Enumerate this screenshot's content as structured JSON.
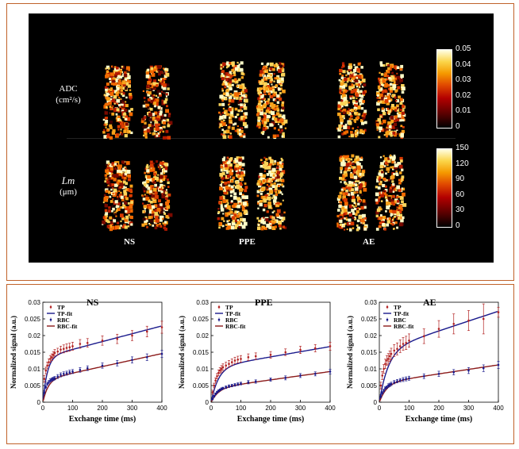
{
  "mri": {
    "row_labels": [
      {
        "line1": "ADC",
        "line2": "(cm²/s)"
      },
      {
        "line1": "Lm",
        "line2": "(μm)"
      }
    ],
    "column_labels": [
      "NS",
      "PPE",
      "AE"
    ],
    "colorbars": [
      {
        "ticks": [
          "0.05",
          "0.04",
          "0.03",
          "0.02",
          "0.01",
          "0"
        ]
      },
      {
        "ticks": [
          "150",
          "120",
          "90",
          "60",
          "30",
          "0"
        ]
      }
    ]
  },
  "chart_data": [
    {
      "type": "scatter",
      "title": "NS",
      "xlabel": "Exchange time (ms)",
      "ylabel": "Normalized signal (a.u.)",
      "xlim": [
        0,
        400
      ],
      "ylim": [
        0,
        0.03
      ],
      "xticks": [
        0,
        100,
        200,
        300,
        400
      ],
      "yticks": [
        0,
        0.005,
        0.01,
        0.015,
        0.02,
        0.025,
        0.03
      ],
      "legend": [
        "TP",
        "TP-fit",
        "RBC",
        "RBC-fit"
      ],
      "legend_position": "top-left",
      "series": [
        {
          "name": "TP",
          "x": [
            5,
            10,
            15,
            20,
            25,
            30,
            35,
            40,
            50,
            60,
            70,
            80,
            90,
            100,
            125,
            150,
            200,
            250,
            300,
            350,
            400
          ],
          "y": [
            0.007,
            0.0095,
            0.011,
            0.012,
            0.013,
            0.0135,
            0.0142,
            0.0148,
            0.0152,
            0.0158,
            0.016,
            0.0163,
            0.0165,
            0.0168,
            0.0175,
            0.0178,
            0.0185,
            0.019,
            0.02,
            0.0212,
            0.0225
          ],
          "err": [
            0.001,
            0.001,
            0.001,
            0.001,
            0.001,
            0.001,
            0.001,
            0.001,
            0.001,
            0.001,
            0.0012,
            0.0012,
            0.0012,
            0.0012,
            0.0013,
            0.0013,
            0.0014,
            0.0014,
            0.0015,
            0.0016,
            0.0018
          ]
        },
        {
          "name": "TP-fit",
          "fit": {
            "a": 0.0135,
            "tau": 15,
            "b": 2.35e-05
          }
        },
        {
          "name": "RBC",
          "x": [
            5,
            10,
            15,
            20,
            25,
            30,
            35,
            40,
            50,
            60,
            70,
            80,
            90,
            100,
            125,
            150,
            200,
            250,
            300,
            350,
            400
          ],
          "y": [
            0.003,
            0.0045,
            0.0055,
            0.006,
            0.0065,
            0.0068,
            0.007,
            0.0072,
            0.0077,
            0.0082,
            0.0085,
            0.0087,
            0.009,
            0.0092,
            0.0097,
            0.0102,
            0.011,
            0.0117,
            0.0127,
            0.0135,
            0.0145
          ],
          "err": [
            0.0005,
            0.0005,
            0.0005,
            0.0005,
            0.0005,
            0.0005,
            0.0005,
            0.0005,
            0.0006,
            0.0006,
            0.0006,
            0.0006,
            0.0006,
            0.0006,
            0.0007,
            0.0007,
            0.0008,
            0.0008,
            0.0009,
            0.001,
            0.0011
          ]
        },
        {
          "name": "RBC-fit",
          "fit": {
            "a": 0.0068,
            "tau": 18,
            "b": 1.95e-05
          }
        }
      ],
      "colors": {
        "TP": "#b22222",
        "TP-fit": "#1a1a8c",
        "RBC": "#1a1a8c",
        "RBC-fit": "#8b1a1a"
      }
    },
    {
      "type": "scatter",
      "title": "PPE",
      "xlabel": "Exchange time (ms)",
      "ylabel": "Normalized signal (a.u.)",
      "xlim": [
        0,
        400
      ],
      "ylim": [
        0,
        0.03
      ],
      "xticks": [
        0,
        100,
        200,
        300,
        400
      ],
      "yticks": [
        0,
        0.005,
        0.01,
        0.015,
        0.02,
        0.025,
        0.03
      ],
      "legend": [
        "TP",
        "TP-fit",
        "RBC",
        "RBC-fit"
      ],
      "legend_position": "top-left",
      "series": [
        {
          "name": "TP",
          "x": [
            5,
            10,
            15,
            20,
            25,
            30,
            35,
            40,
            50,
            60,
            70,
            80,
            90,
            100,
            125,
            150,
            200,
            250,
            300,
            350,
            400
          ],
          "y": [
            0.003,
            0.005,
            0.0065,
            0.0078,
            0.0088,
            0.0095,
            0.01,
            0.0105,
            0.011,
            0.0115,
            0.012,
            0.0125,
            0.0128,
            0.013,
            0.0135,
            0.0138,
            0.0142,
            0.015,
            0.0157,
            0.0162,
            0.0168
          ],
          "err": [
            0.0006,
            0.0007,
            0.0008,
            0.0008,
            0.0009,
            0.0009,
            0.001,
            0.001,
            0.001,
            0.001,
            0.001,
            0.001,
            0.001,
            0.001,
            0.001,
            0.001,
            0.001,
            0.001,
            0.0011,
            0.0011,
            0.0012
          ]
        },
        {
          "name": "TP-fit",
          "fit": {
            "a": 0.0105,
            "tau": 25,
            "b": 1.55e-05
          }
        },
        {
          "name": "RBC",
          "x": [
            5,
            10,
            15,
            20,
            25,
            30,
            35,
            40,
            50,
            60,
            70,
            80,
            90,
            100,
            125,
            150,
            200,
            250,
            300,
            350,
            400
          ],
          "y": [
            0.001,
            0.0018,
            0.0025,
            0.003,
            0.0034,
            0.0037,
            0.004,
            0.0042,
            0.0045,
            0.0048,
            0.005,
            0.0052,
            0.0054,
            0.0056,
            0.006,
            0.0062,
            0.0068,
            0.0073,
            0.008,
            0.0085,
            0.0092
          ],
          "err": [
            0.0003,
            0.0003,
            0.0003,
            0.0003,
            0.0003,
            0.0003,
            0.0003,
            0.0003,
            0.0004,
            0.0004,
            0.0004,
            0.0004,
            0.0004,
            0.0004,
            0.0005,
            0.0005,
            0.0005,
            0.0006,
            0.0006,
            0.0006,
            0.0007
          ]
        },
        {
          "name": "RBC-fit",
          "fit": {
            "a": 0.0042,
            "tau": 25,
            "b": 1.25e-05
          }
        }
      ],
      "colors": {
        "TP": "#b22222",
        "TP-fit": "#1a1a8c",
        "RBC": "#1a1a8c",
        "RBC-fit": "#8b1a1a"
      }
    },
    {
      "type": "scatter",
      "title": "AE",
      "xlabel": "Exchange time (ms)",
      "ylabel": "Normalized signal (a.u.)",
      "xlim": [
        0,
        400
      ],
      "ylim": [
        0,
        0.03
      ],
      "xticks": [
        0,
        100,
        200,
        300,
        400
      ],
      "yticks": [
        0,
        0.005,
        0.01,
        0.015,
        0.02,
        0.025,
        0.03
      ],
      "legend": [
        "TP",
        "TP-fit",
        "RBC",
        "RBC-fit"
      ],
      "legend_position": "top-left",
      "series": [
        {
          "name": "TP",
          "x": [
            5,
            10,
            15,
            20,
            25,
            30,
            35,
            40,
            50,
            60,
            70,
            80,
            90,
            100,
            150,
            200,
            250,
            300,
            350,
            400
          ],
          "y": [
            0.005,
            0.008,
            0.01,
            0.0115,
            0.0125,
            0.013,
            0.0138,
            0.0145,
            0.0155,
            0.016,
            0.0168,
            0.0175,
            0.0178,
            0.0185,
            0.0198,
            0.022,
            0.0235,
            0.0245,
            0.025,
            0.027
          ],
          "err": [
            0.001,
            0.0012,
            0.0013,
            0.0014,
            0.0015,
            0.0016,
            0.0016,
            0.0017,
            0.0018,
            0.0018,
            0.0019,
            0.0019,
            0.002,
            0.002,
            0.0022,
            0.0025,
            0.003,
            0.003,
            0.0045,
            0.0015
          ]
        },
        {
          "name": "TP-fit",
          "fit": {
            "a": 0.0155,
            "tau": 30,
            "b": 2.95e-05
          }
        },
        {
          "name": "RBC",
          "x": [
            5,
            10,
            15,
            20,
            25,
            30,
            35,
            40,
            50,
            60,
            70,
            80,
            90,
            100,
            150,
            200,
            250,
            300,
            350,
            400
          ],
          "y": [
            0.0018,
            0.0028,
            0.0035,
            0.0042,
            0.0045,
            0.005,
            0.0052,
            0.0055,
            0.006,
            0.0063,
            0.0066,
            0.0068,
            0.007,
            0.0072,
            0.0078,
            0.0085,
            0.009,
            0.0095,
            0.0102,
            0.0112
          ],
          "err": [
            0.0004,
            0.0004,
            0.0004,
            0.0004,
            0.0004,
            0.0005,
            0.0005,
            0.0005,
            0.0005,
            0.0005,
            0.0005,
            0.0006,
            0.0006,
            0.0006,
            0.0007,
            0.0008,
            0.0008,
            0.0009,
            0.001,
            0.0011
          ]
        },
        {
          "name": "RBC-fit",
          "fit": {
            "a": 0.0058,
            "tau": 25,
            "b": 1.35e-05
          }
        }
      ],
      "colors": {
        "TP": "#b22222",
        "TP-fit": "#1a1a8c",
        "RBC": "#1a1a8c",
        "RBC-fit": "#8b1a1a"
      }
    }
  ]
}
